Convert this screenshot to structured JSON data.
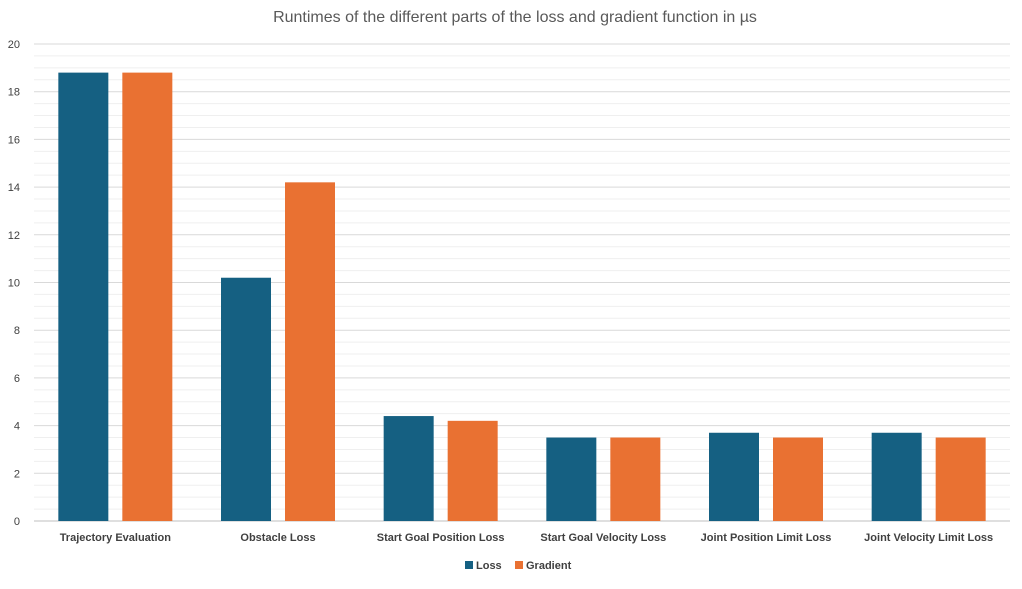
{
  "chart_data": {
    "type": "bar",
    "title": "Runtimes of the different parts of the loss and gradient function in µs",
    "xlabel": "",
    "ylabel": "",
    "ylim": [
      0,
      20
    ],
    "yticks": [
      0,
      2,
      4,
      6,
      8,
      10,
      12,
      14,
      16,
      18,
      20
    ],
    "categories": [
      "Trajectory Evaluation",
      "Obstacle Loss",
      "Start Goal Position Loss",
      "Start Goal Velocity Loss",
      "Joint Position Limit Loss",
      "Joint Velocity Limit Loss"
    ],
    "series": [
      {
        "name": "Loss",
        "color": "#156082",
        "values": [
          18.8,
          10.2,
          4.4,
          3.5,
          3.7,
          3.7
        ]
      },
      {
        "name": "Gradient",
        "color": "#E97132",
        "values": [
          18.8,
          14.2,
          4.2,
          3.5,
          3.5,
          3.5
        ]
      }
    ],
    "grid": true,
    "legend": "bottom",
    "colors": {
      "grid_major": "#d9d9d9",
      "grid_minor": "#efefef",
      "axis": "#bfbfbf"
    }
  }
}
